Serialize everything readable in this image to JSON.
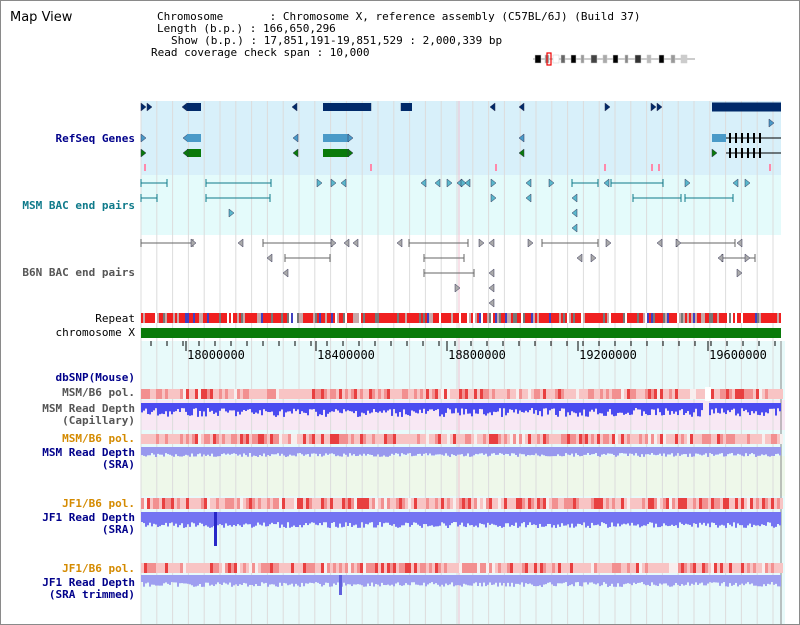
{
  "window": {
    "title": "Map View"
  },
  "header": {
    "chromosome": "Chromosome       : Chromosome X, reference assembly (C57BL/6J) (Build 37)",
    "length": "Length (b.p.) : 166,650,296",
    "show": "Show (b.p.) : 17,851,191-19,851,529 : 2,000,339 bp",
    "coverage": "Read coverage check span : 10,000"
  },
  "tracks": {
    "refseq": "RefSeq Genes",
    "msm_bac": "MSM BAC end pairs",
    "b6n_bac": "B6N BAC end pairs",
    "repeat": "Repeat",
    "chromosome": "chromosome X",
    "dbsnp": "dbSNP(Mouse)",
    "msm_b6_pol_1": "MSM/B6 pol.",
    "msm_read_depth_cap": "MSM Read Depth\n(Capillary)",
    "msm_b6_pol_2": "MSM/B6 pol.",
    "msm_read_depth_sra": "MSM Read Depth\n(SRA)",
    "jf1_b6_pol_1": "JF1/B6 pol.",
    "jf1_read_depth_sra": "JF1 Read Depth\n(SRA)",
    "jf1_b6_pol_2": "JF1/B6 pol.",
    "jf1_read_depth_trim": "JF1 Read Depth\n(SRA trimmed)"
  },
  "axis": {
    "ticks": [
      "18000000",
      "18400000",
      "18800000",
      "19200000",
      "19600000"
    ]
  },
  "colors": {
    "refseq_bg": "#d8f0fa",
    "bac_bg": "#e4fbfb",
    "gene_dark": "#002a6a",
    "gene_mid": "#4a9ac8",
    "gene_green": "#0a7a0a",
    "chrom_green": "#0a7a0a",
    "depth_blue": "#4a4af0",
    "jf1_blue": "#7474f2"
  }
}
